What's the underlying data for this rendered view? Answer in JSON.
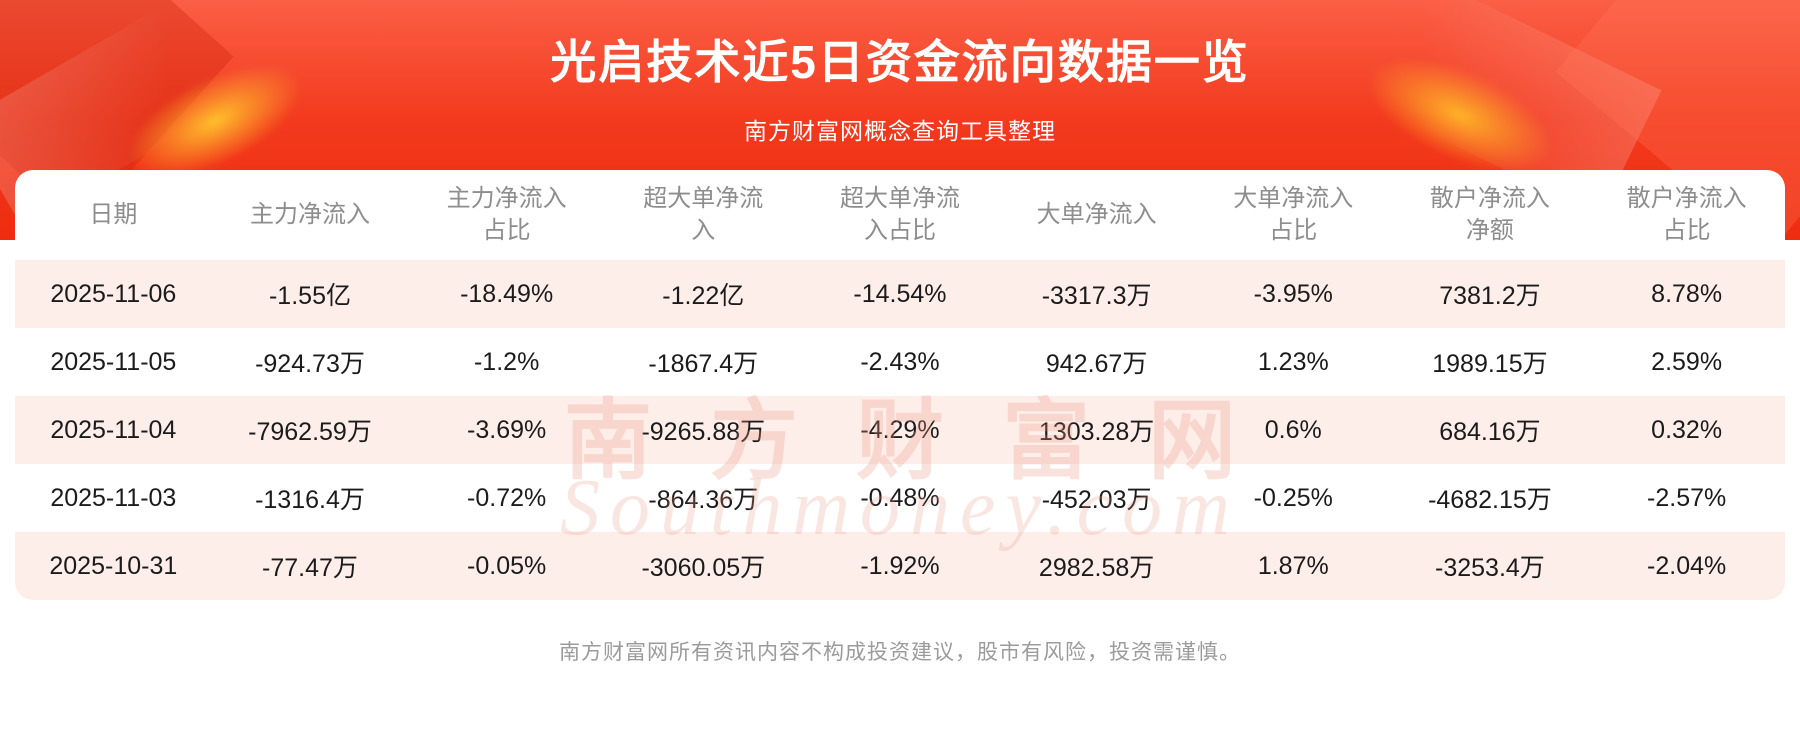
{
  "header": {
    "subtitle": "南方财富网概念查询工具整理"
  },
  "chart_data": {
    "type": "table",
    "title": "光启技术近5日资金流向数据一览",
    "columns": [
      "日期",
      "主力净流入",
      "主力净流入占比",
      "超大单净流入",
      "超大单净流入占比",
      "大单净流入",
      "大单净流入占比",
      "散户净流入净额",
      "散户净流入占比"
    ],
    "column_labels": [
      "日期",
      "主力净流入",
      "主力净流入\n占比",
      "超大单净流\n入",
      "超大单净流\n入占比",
      "大单净流入",
      "大单净流入\n占比",
      "散户净流入\n净额",
      "散户净流入\n占比"
    ],
    "rows": [
      [
        "2025-11-06",
        "-1.55亿",
        "-18.49%",
        "-1.22亿",
        "-14.54%",
        "-3317.3万",
        "-3.95%",
        "7381.2万",
        "8.78%"
      ],
      [
        "2025-11-05",
        "-924.73万",
        "-1.2%",
        "-1867.4万",
        "-2.43%",
        "942.67万",
        "1.23%",
        "1989.15万",
        "2.59%"
      ],
      [
        "2025-11-04",
        "-7962.59万",
        "-3.69%",
        "-9265.88万",
        "-4.29%",
        "1303.28万",
        "0.6%",
        "684.16万",
        "0.32%"
      ],
      [
        "2025-11-03",
        "-1316.4万",
        "-0.72%",
        "-864.36万",
        "-0.48%",
        "-452.03万",
        "-0.25%",
        "-4682.15万",
        "-2.57%"
      ],
      [
        "2025-10-31",
        "-77.47万",
        "-0.05%",
        "-3060.05万",
        "-1.92%",
        "2982.58万",
        "1.87%",
        "-3253.4万",
        "-2.04%"
      ]
    ]
  },
  "watermark": {
    "cn": "南方财富网",
    "en": "Southmoney.com"
  },
  "footer": {
    "disclaimer": "南方财富网所有资讯内容不构成投资建议，股市有风险，投资需谨慎。"
  },
  "colors": {
    "banner_red_top": "#fa5f45",
    "banner_red_bottom": "#ee2c10",
    "row_alt_pink": "#fdeeea",
    "header_text_gray": "#8d8d8d",
    "cell_text": "#1b1b1b",
    "accent_gold": "#ffc62d",
    "footer_gray": "#9b9b9b"
  }
}
